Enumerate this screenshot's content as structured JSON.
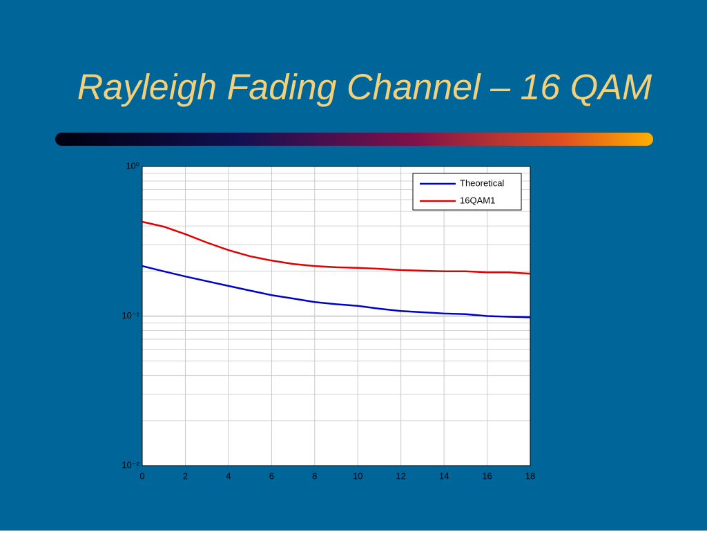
{
  "chart_data": {
    "type": "line",
    "title": "Rayleigh Fading Channel – 16 QAM",
    "x": [
      0,
      1,
      2,
      3,
      4,
      5,
      6,
      7,
      8,
      9,
      10,
      11,
      12,
      13,
      14,
      15,
      16,
      17,
      18
    ],
    "series": [
      {
        "name": "Theoretical",
        "color": "#0000cc",
        "values": [
          0.216,
          0.199,
          0.184,
          0.171,
          0.159,
          0.148,
          0.138,
          0.131,
          0.124,
          0.12,
          0.117,
          0.112,
          0.108,
          0.106,
          0.104,
          0.103,
          0.1,
          0.099,
          0.098
        ]
      },
      {
        "name": "16QAM1",
        "color": "#e00000",
        "values": [
          0.427,
          0.396,
          0.353,
          0.31,
          0.276,
          0.251,
          0.235,
          0.223,
          0.216,
          0.212,
          0.21,
          0.207,
          0.203,
          0.201,
          0.199,
          0.199,
          0.196,
          0.196,
          0.192
        ]
      }
    ],
    "xlim": [
      0,
      18
    ],
    "xticks": [
      0,
      2,
      4,
      6,
      8,
      10,
      12,
      14,
      16,
      18
    ],
    "ylim": [
      0.01,
      1
    ],
    "log_y": true,
    "yticks": [
      {
        "value": 0.01,
        "label": "10⁻²"
      },
      {
        "value": 0.1,
        "label": "10⁻¹"
      },
      {
        "value": 1,
        "label": "10⁰"
      }
    ],
    "grid": true,
    "legend": "upper right"
  }
}
